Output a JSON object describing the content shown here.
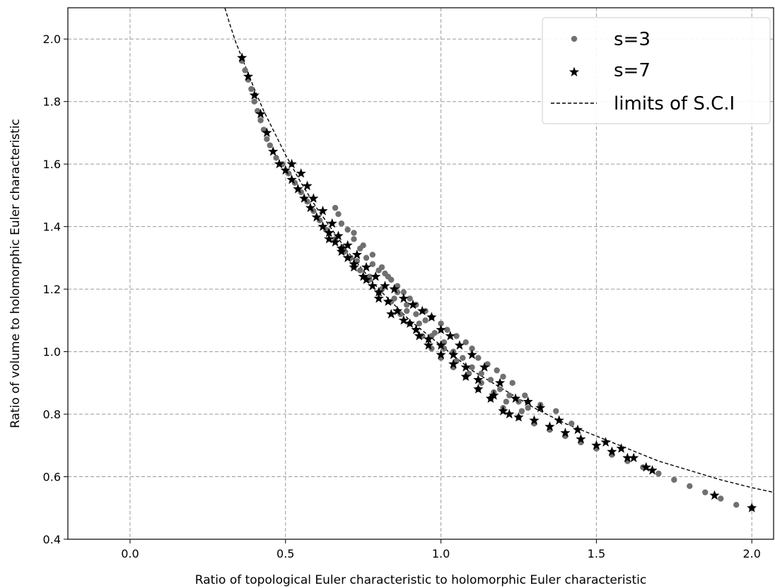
{
  "chart_data": {
    "type": "scatter",
    "title": "",
    "xlabel": "Ratio of topological Euler characteristic to holomorphic Euler characteristic",
    "ylabel": "Ratio of volume to holomorphic Euler characteristic",
    "xlim": [
      -0.2,
      2.07
    ],
    "ylim": [
      0.4,
      2.1
    ],
    "xticks": [
      0.0,
      0.5,
      1.0,
      1.5,
      2.0
    ],
    "xtick_labels": [
      "0.0",
      "0.5",
      "1.0",
      "1.5",
      "2.0"
    ],
    "yticks": [
      0.4,
      0.6,
      0.8,
      1.0,
      1.2,
      1.4,
      1.6,
      1.8,
      2.0
    ],
    "ytick_labels": [
      "0.4",
      "0.6",
      "0.8",
      "1.0",
      "1.2",
      "1.4",
      "1.6",
      "1.8",
      "2.0"
    ],
    "grid": true,
    "legend_placement": "upper-right",
    "series": [
      {
        "name": "s=3",
        "marker": "circle",
        "color": "#707070",
        "points": [
          [
            0.36,
            1.93
          ],
          [
            0.37,
            1.9
          ],
          [
            0.38,
            1.87
          ],
          [
            0.39,
            1.84
          ],
          [
            0.4,
            1.8
          ],
          [
            0.41,
            1.77
          ],
          [
            0.42,
            1.74
          ],
          [
            0.43,
            1.71
          ],
          [
            0.44,
            1.68
          ],
          [
            0.45,
            1.66
          ],
          [
            0.47,
            1.62
          ],
          [
            0.49,
            1.6
          ],
          [
            0.51,
            1.57
          ],
          [
            0.53,
            1.54
          ],
          [
            0.55,
            1.51
          ],
          [
            0.57,
            1.48
          ],
          [
            0.59,
            1.45
          ],
          [
            0.61,
            1.42
          ],
          [
            0.63,
            1.39
          ],
          [
            0.66,
            1.36
          ],
          [
            0.68,
            1.33
          ],
          [
            0.71,
            1.3
          ],
          [
            0.74,
            1.26
          ],
          [
            0.77,
            1.23
          ],
          [
            0.8,
            1.19
          ],
          [
            0.84,
            1.16
          ],
          [
            0.87,
            1.12
          ],
          [
            0.9,
            1.09
          ],
          [
            0.94,
            1.05
          ],
          [
            0.97,
            1.01
          ],
          [
            1.0,
            0.98
          ],
          [
            1.04,
            0.95
          ],
          [
            1.08,
            0.92
          ],
          [
            1.12,
            0.88
          ],
          [
            1.16,
            0.85
          ],
          [
            1.2,
            0.82
          ],
          [
            1.25,
            0.79
          ],
          [
            1.3,
            0.77
          ],
          [
            1.35,
            0.75
          ],
          [
            1.4,
            0.73
          ],
          [
            1.45,
            0.71
          ],
          [
            1.5,
            0.69
          ],
          [
            1.55,
            0.67
          ],
          [
            1.6,
            0.65
          ],
          [
            1.65,
            0.63
          ],
          [
            1.7,
            0.61
          ],
          [
            1.75,
            0.59
          ],
          [
            1.8,
            0.57
          ],
          [
            1.85,
            0.55
          ],
          [
            1.9,
            0.53
          ],
          [
            1.95,
            0.51
          ],
          [
            2.0,
            0.5
          ],
          [
            0.66,
            1.46
          ],
          [
            0.67,
            1.44
          ],
          [
            0.68,
            1.41
          ],
          [
            0.7,
            1.39
          ],
          [
            0.72,
            1.36
          ],
          [
            0.74,
            1.33
          ],
          [
            0.76,
            1.3
          ],
          [
            0.78,
            1.28
          ],
          [
            0.8,
            1.26
          ],
          [
            0.82,
            1.25
          ],
          [
            0.84,
            1.23
          ],
          [
            0.86,
            1.21
          ],
          [
            0.88,
            1.19
          ],
          [
            0.9,
            1.17
          ],
          [
            0.92,
            1.15
          ],
          [
            0.95,
            1.13
          ],
          [
            0.97,
            1.11
          ],
          [
            1.0,
            1.09
          ],
          [
            1.02,
            1.07
          ],
          [
            1.05,
            1.05
          ],
          [
            1.08,
            1.03
          ],
          [
            1.1,
            1.01
          ],
          [
            1.12,
            0.98
          ],
          [
            1.15,
            0.96
          ],
          [
            1.18,
            0.94
          ],
          [
            1.2,
            0.92
          ],
          [
            1.23,
            0.9
          ],
          [
            1.27,
            0.86
          ],
          [
            1.32,
            0.83
          ],
          [
            1.37,
            0.81
          ],
          [
            1.42,
            0.77
          ],
          [
            0.72,
            1.38
          ],
          [
            0.75,
            1.34
          ],
          [
            0.78,
            1.31
          ],
          [
            0.81,
            1.27
          ],
          [
            0.83,
            1.24
          ],
          [
            0.86,
            1.19
          ],
          [
            0.89,
            1.15
          ],
          [
            0.92,
            1.12
          ],
          [
            0.95,
            1.1
          ],
          [
            0.98,
            1.06
          ],
          [
            1.01,
            1.03
          ],
          [
            1.04,
            1.0
          ],
          [
            1.07,
            0.98
          ],
          [
            1.1,
            0.95
          ],
          [
            1.13,
            0.93
          ],
          [
            1.16,
            0.91
          ],
          [
            1.19,
            0.88
          ],
          [
            1.22,
            0.86
          ],
          [
            1.25,
            0.84
          ],
          [
            1.28,
            0.82
          ],
          [
            0.69,
            1.32
          ],
          [
            0.73,
            1.29
          ],
          [
            0.77,
            1.24
          ],
          [
            0.81,
            1.2
          ],
          [
            0.85,
            1.17
          ],
          [
            0.89,
            1.13
          ],
          [
            0.93,
            1.09
          ],
          [
            0.97,
            1.05
          ],
          [
            1.01,
            1.01
          ],
          [
            1.05,
            0.97
          ],
          [
            1.09,
            0.93
          ],
          [
            1.13,
            0.9
          ],
          [
            1.17,
            0.87
          ],
          [
            1.21,
            0.84
          ],
          [
            1.26,
            0.81
          ]
        ]
      },
      {
        "name": "s=7",
        "marker": "star",
        "color": "#000000",
        "points": [
          [
            0.36,
            1.94
          ],
          [
            0.38,
            1.88
          ],
          [
            0.4,
            1.82
          ],
          [
            0.42,
            1.76
          ],
          [
            0.44,
            1.7
          ],
          [
            0.46,
            1.64
          ],
          [
            0.48,
            1.6
          ],
          [
            0.5,
            1.58
          ],
          [
            0.52,
            1.55
          ],
          [
            0.54,
            1.52
          ],
          [
            0.56,
            1.49
          ],
          [
            0.58,
            1.46
          ],
          [
            0.6,
            1.43
          ],
          [
            0.62,
            1.4
          ],
          [
            0.64,
            1.38
          ],
          [
            0.66,
            1.35
          ],
          [
            0.68,
            1.33
          ],
          [
            0.7,
            1.3
          ],
          [
            0.72,
            1.27
          ],
          [
            0.75,
            1.24
          ],
          [
            0.78,
            1.21
          ],
          [
            0.8,
            1.19
          ],
          [
            0.83,
            1.16
          ],
          [
            0.86,
            1.13
          ],
          [
            0.9,
            1.09
          ],
          [
            0.93,
            1.05
          ],
          [
            0.96,
            1.02
          ],
          [
            1.0,
            0.99
          ],
          [
            1.04,
            0.96
          ],
          [
            1.08,
            0.92
          ],
          [
            1.12,
            0.88
          ],
          [
            1.16,
            0.85
          ],
          [
            1.2,
            0.81
          ],
          [
            1.25,
            0.79
          ],
          [
            1.3,
            0.78
          ],
          [
            1.35,
            0.76
          ],
          [
            1.4,
            0.74
          ],
          [
            1.45,
            0.72
          ],
          [
            1.5,
            0.7
          ],
          [
            1.55,
            0.68
          ],
          [
            1.6,
            0.66
          ],
          [
            1.66,
            0.63
          ],
          [
            1.68,
            0.62
          ],
          [
            1.88,
            0.54
          ],
          [
            2.0,
            0.5
          ],
          [
            0.52,
            1.6
          ],
          [
            0.55,
            1.57
          ],
          [
            0.57,
            1.53
          ],
          [
            0.59,
            1.49
          ],
          [
            0.62,
            1.45
          ],
          [
            0.65,
            1.41
          ],
          [
            0.67,
            1.37
          ],
          [
            0.7,
            1.34
          ],
          [
            0.73,
            1.31
          ],
          [
            0.76,
            1.27
          ],
          [
            0.79,
            1.24
          ],
          [
            0.82,
            1.21
          ],
          [
            0.85,
            1.2
          ],
          [
            0.88,
            1.17
          ],
          [
            0.91,
            1.15
          ],
          [
            0.94,
            1.13
          ],
          [
            0.97,
            1.11
          ],
          [
            1.0,
            1.07
          ],
          [
            1.03,
            1.05
          ],
          [
            1.06,
            1.02
          ],
          [
            1.1,
            0.99
          ],
          [
            1.14,
            0.95
          ],
          [
            1.19,
            0.9
          ],
          [
            1.24,
            0.85
          ],
          [
            1.28,
            0.84
          ],
          [
            1.32,
            0.82
          ],
          [
            1.38,
            0.78
          ],
          [
            1.44,
            0.75
          ],
          [
            1.53,
            0.71
          ],
          [
            1.58,
            0.69
          ],
          [
            1.62,
            0.66
          ],
          [
            0.64,
            1.36
          ],
          [
            0.68,
            1.32
          ],
          [
            0.72,
            1.28
          ],
          [
            0.76,
            1.23
          ],
          [
            0.8,
            1.17
          ],
          [
            0.84,
            1.12
          ],
          [
            0.88,
            1.1
          ],
          [
            0.92,
            1.07
          ],
          [
            0.96,
            1.04
          ],
          [
            1.0,
            1.02
          ],
          [
            1.04,
            0.99
          ],
          [
            1.08,
            0.95
          ],
          [
            1.12,
            0.91
          ],
          [
            1.17,
            0.86
          ],
          [
            1.22,
            0.8
          ]
        ]
      }
    ],
    "curve": {
      "name": "limits of S.C.I",
      "style": "dashed",
      "color": "#000000",
      "x": [
        0.305,
        0.32,
        0.34,
        0.36,
        0.38,
        0.4,
        0.43,
        0.46,
        0.5,
        0.55,
        0.6,
        0.65,
        0.7,
        0.75,
        0.8,
        0.85,
        0.9,
        0.95,
        1.0,
        1.1,
        1.2,
        1.3,
        1.4,
        1.5,
        1.6,
        1.7,
        1.8,
        1.9,
        2.0,
        2.07
      ],
      "y": [
        2.1,
        2.05,
        1.99,
        1.94,
        1.89,
        1.84,
        1.77,
        1.71,
        1.63,
        1.54,
        1.46,
        1.39,
        1.32,
        1.26,
        1.2,
        1.15,
        1.1,
        1.06,
        1.02,
        0.94,
        0.88,
        0.82,
        0.77,
        0.73,
        0.69,
        0.65,
        0.62,
        0.59,
        0.565,
        0.55
      ]
    }
  }
}
